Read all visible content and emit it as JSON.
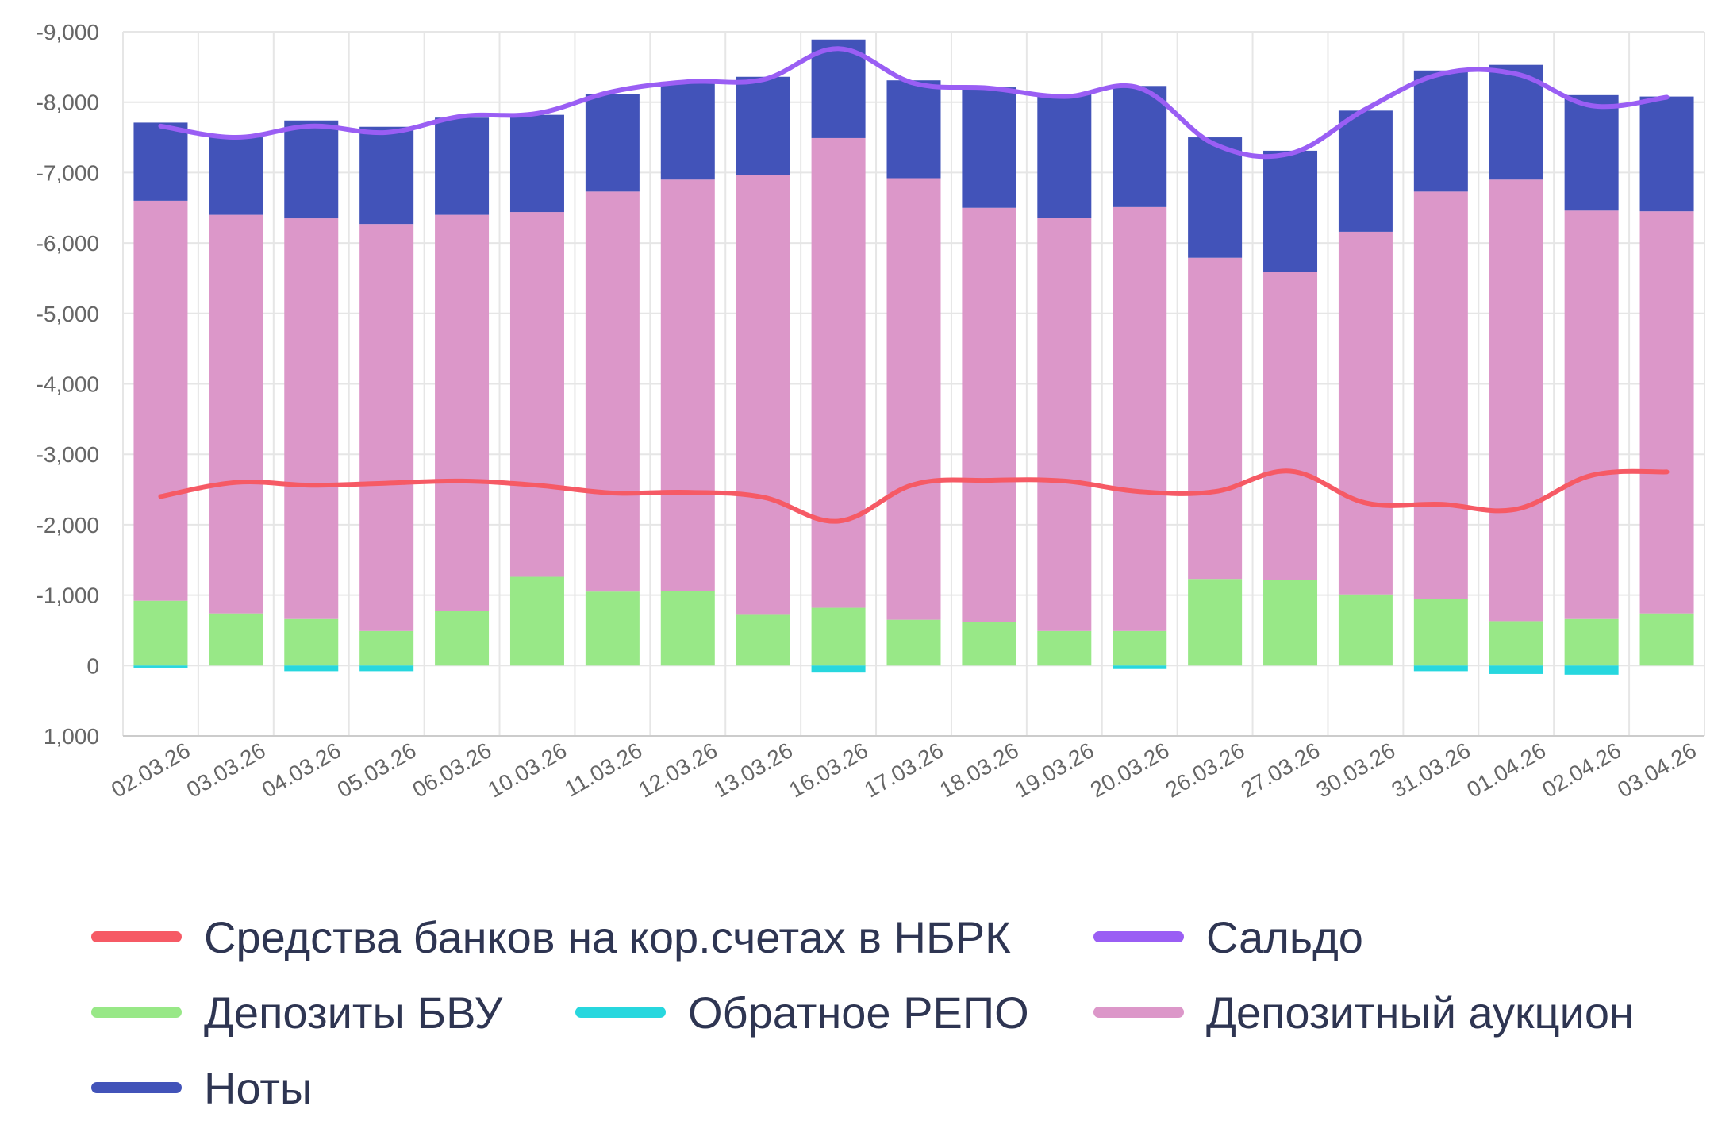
{
  "chart_data": {
    "type": "bar",
    "stacked": true,
    "y_reversed": true,
    "categories": [
      "02.03.26",
      "03.03.26",
      "04.03.26",
      "05.03.26",
      "06.03.26",
      "10.03.26",
      "11.03.26",
      "12.03.26",
      "13.03.26",
      "16.03.26",
      "17.03.26",
      "18.03.26",
      "19.03.26",
      "20.03.26",
      "26.03.26",
      "27.03.26",
      "30.03.26",
      "31.03.26",
      "01.04.26",
      "02.04.26",
      "03.04.26"
    ],
    "ylim": [
      1000,
      -9000
    ],
    "yticks": [
      -9000,
      -8000,
      -7000,
      -6000,
      -5000,
      -4000,
      -3000,
      -2000,
      -1000,
      0,
      1000
    ],
    "ytick_labels": [
      "-9,000",
      "-8,000",
      "-7,000",
      "-6,000",
      "-5,000",
      "-4,000",
      "-3,000",
      "-2,000",
      "-1,000",
      "0",
      "1,000"
    ],
    "grid": true,
    "legend_position": "bottom",
    "bar_series": [
      {
        "name": "Депозиты БВУ",
        "color": "#98e887",
        "values": [
          -920,
          -740,
          -660,
          -490,
          -780,
          -1260,
          -1050,
          -1060,
          -720,
          -820,
          -650,
          -620,
          -490,
          -490,
          -1230,
          -1210,
          -1010,
          -950,
          -630,
          -660,
          -740
        ]
      },
      {
        "name": "Обратное РЕПО",
        "color": "#27d7de",
        "values": [
          30,
          0,
          80,
          80,
          0,
          0,
          0,
          0,
          0,
          100,
          0,
          0,
          0,
          50,
          0,
          0,
          0,
          80,
          120,
          130,
          0
        ]
      },
      {
        "name": "Депозитный аукцион",
        "color": "#dc97c9",
        "values": [
          -5680,
          -5660,
          -5690,
          -5780,
          -5620,
          -5180,
          -5680,
          -5840,
          -6240,
          -6670,
          -6270,
          -5880,
          -5870,
          -6020,
          -4560,
          -4380,
          -5150,
          -5780,
          -6270,
          -5800,
          -5710
        ]
      },
      {
        "name": "Ноты",
        "color": "#4253b9",
        "values": [
          -1110,
          -1100,
          -1390,
          -1380,
          -1380,
          -1380,
          -1390,
          -1390,
          -1400,
          -1400,
          -1390,
          -1710,
          -1760,
          -1720,
          -1710,
          -1720,
          -1720,
          -1720,
          -1630,
          -1640,
          -1630
        ]
      }
    ],
    "line_series": [
      {
        "name": "Средства банков на кор.счетах в НБРК",
        "color": "#f65a65",
        "values": [
          -2400,
          -2600,
          -2560,
          -2590,
          -2620,
          -2560,
          -2450,
          -2460,
          -2390,
          -2050,
          -2570,
          -2630,
          -2620,
          -2470,
          -2470,
          -2760,
          -2310,
          -2290,
          -2220,
          -2700,
          -2750
        ]
      },
      {
        "name": "Сальдо",
        "color": "#9a5ef4",
        "values": [
          -7660,
          -7500,
          -7660,
          -7570,
          -7800,
          -7840,
          -8150,
          -8290,
          -8320,
          -8760,
          -8270,
          -8200,
          -8080,
          -8200,
          -7400,
          -7270,
          -7900,
          -8400,
          -8400,
          -7950,
          -8070
        ]
      }
    ],
    "legend": [
      {
        "name": "Средства банков на кор.счетах в НБРК",
        "color": "#f65a65"
      },
      {
        "name": "Сальдо",
        "color": "#9a5ef4"
      },
      {
        "name": "Депозиты БВУ",
        "color": "#98e887"
      },
      {
        "name": "Обратное РЕПО",
        "color": "#27d7de"
      },
      {
        "name": "Депозитный аукцион",
        "color": "#dc97c9"
      },
      {
        "name": "Ноты",
        "color": "#4253b9"
      }
    ]
  }
}
